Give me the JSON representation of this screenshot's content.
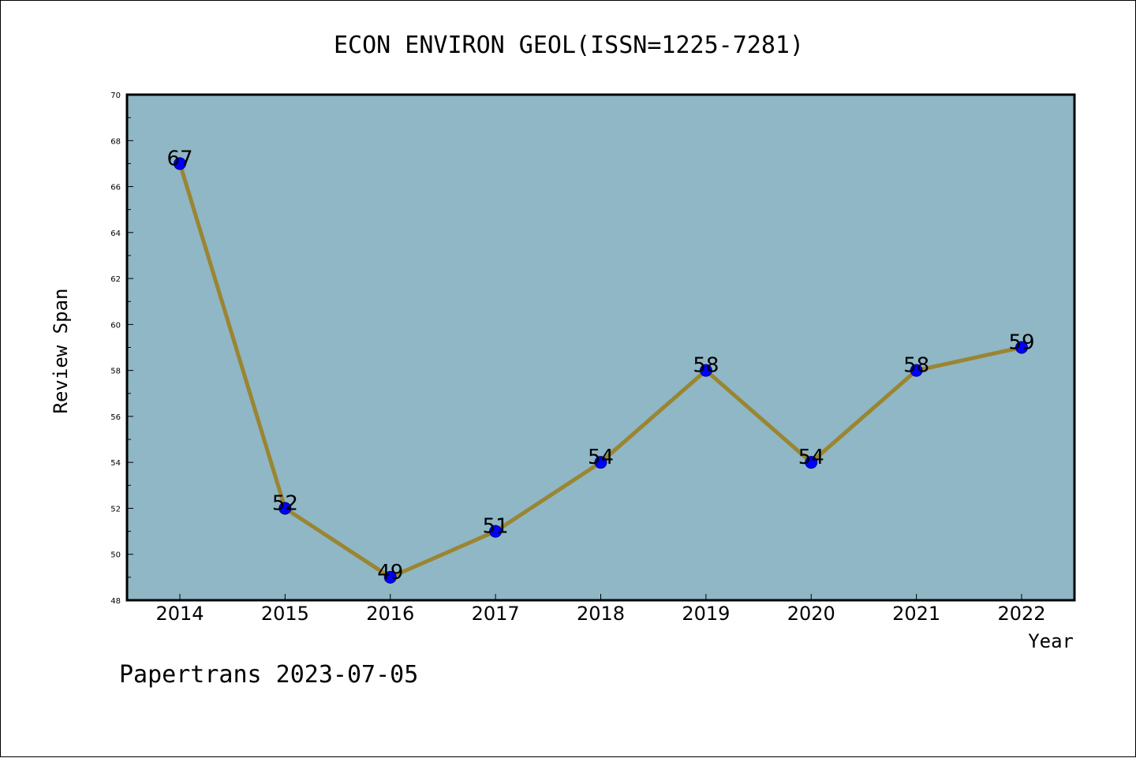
{
  "chart_data": {
    "type": "line",
    "title": "ECON ENVIRON GEOL(ISSN=1225-7281)",
    "xlabel": "Year",
    "ylabel": "Review Span",
    "categories": [
      "2014",
      "2015",
      "2016",
      "2017",
      "2018",
      "2019",
      "2020",
      "2021",
      "2022"
    ],
    "values": [
      67,
      52,
      49,
      51,
      54,
      58,
      54,
      58,
      59
    ],
    "data_labels": [
      "67",
      "52",
      "49",
      "51",
      "54",
      "58",
      "54",
      "58",
      "59"
    ],
    "ylim": [
      48,
      70
    ],
    "yticks": [
      "48",
      "50",
      "52",
      "54",
      "56",
      "58",
      "60",
      "62",
      "64",
      "66",
      "68",
      "70"
    ],
    "grid": false,
    "legend": "none",
    "colors": {
      "plot_background": "#8fb7c5",
      "line": "#9a8532",
      "marker": "#0000ff",
      "marker_edge": "#000080"
    }
  },
  "footer": {
    "text": "Papertrans 2023-07-05"
  }
}
